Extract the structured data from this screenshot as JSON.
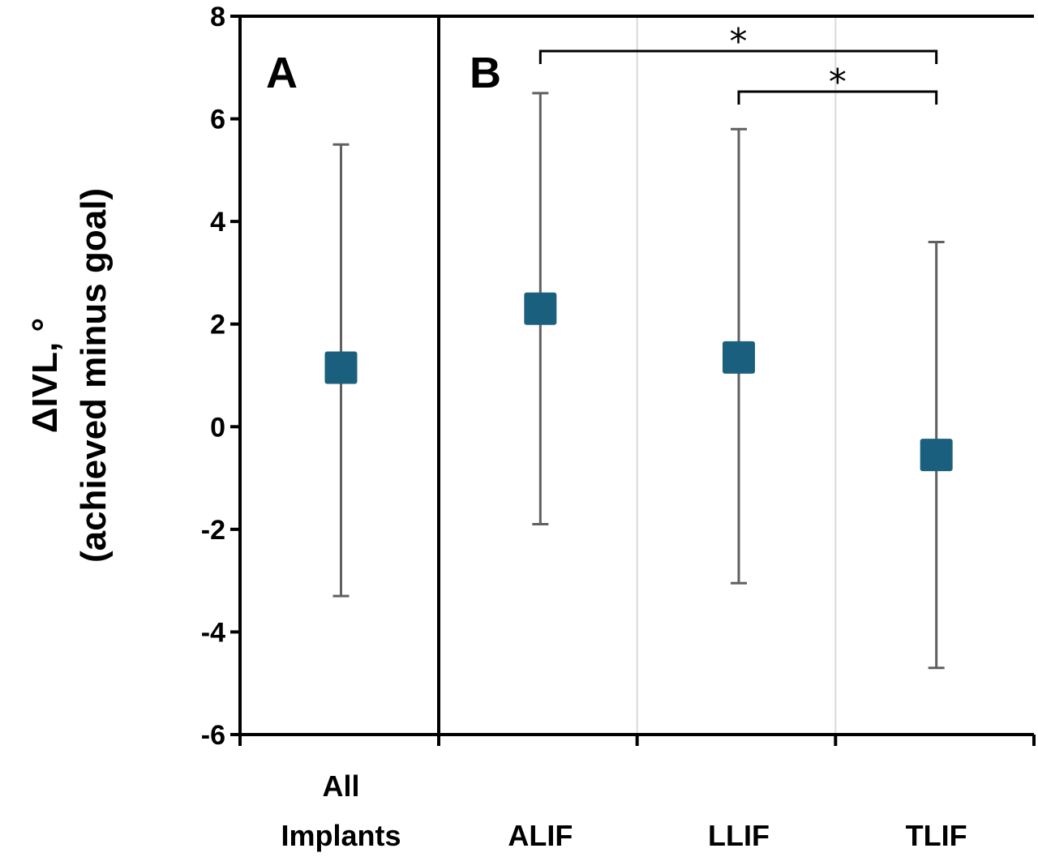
{
  "chart_data": {
    "type": "scatter",
    "ylabel_line1": "ΔIVL, °",
    "ylabel_line2": "(achieved minus goal)",
    "ylim": [
      -6,
      8
    ],
    "yticks": [
      "-6",
      "-4",
      "-2",
      "0",
      "2",
      "4",
      "6",
      "8"
    ],
    "ytick_values": [
      -6,
      -4,
      -2,
      0,
      2,
      4,
      6,
      8
    ],
    "panels": [
      {
        "label": "A",
        "categories": [
          {
            "line1": "All",
            "line2": "Implants",
            "mean": 1.15,
            "upper": 5.5,
            "lower": -3.3
          }
        ]
      },
      {
        "label": "B",
        "categories": [
          {
            "line1": "ALIF",
            "line2": "",
            "mean": 2.3,
            "upper": 6.5,
            "lower": -1.9
          },
          {
            "line1": "LLIF",
            "line2": "",
            "mean": 1.35,
            "upper": 5.8,
            "lower": -3.05
          },
          {
            "line1": "TLIF",
            "line2": "",
            "mean": -0.55,
            "upper": 3.6,
            "lower": -4.7
          }
        ]
      }
    ],
    "significance": [
      {
        "from": "ALIF",
        "to": "TLIF",
        "symbol": "*"
      },
      {
        "from": "LLIF",
        "to": "TLIF",
        "symbol": "*"
      }
    ],
    "marker_color": "#1b5f7e",
    "errorbar_color": "#606060",
    "grid": "vertical separators in panel B"
  }
}
